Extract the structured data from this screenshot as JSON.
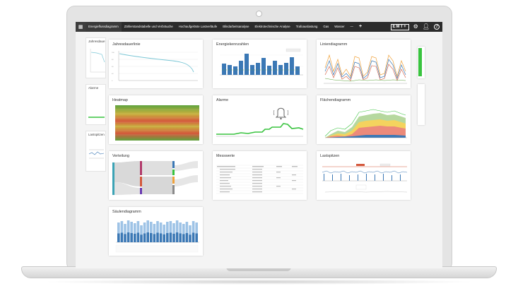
{
  "nav": {
    "tabs": [
      "Energieflussdiagramm",
      "Zählerstandstabelle und Verbräuche",
      "Hochaufgelöste Lastverläufe",
      "Blindarbeitsanalyse",
      "Elektrotechnische Analyse",
      "Trafoauslastung",
      "Gas",
      "Wasser"
    ],
    "more": "—",
    "add": "+",
    "logo": "EMT+",
    "settings_icon": "gear-icon",
    "user_icon": "user-icon",
    "help_icon": "help-icon"
  },
  "sidebar": {
    "items": [
      "Jahresdaue",
      "Alarme",
      "Lastspitzen"
    ]
  },
  "cards": {
    "jahresdauerlinie": "Jahresdauerlinie",
    "energiekennzahlen": "Energiekennzahlen",
    "liniendiagramm": "Liniendiagramm",
    "heatmap": "Heatmap",
    "alarme": "Alarme",
    "flaechendiagramm": "Flächendiagramm",
    "verteilung": "Verteilung",
    "messwerte": "Messwerte",
    "lastspitzen": "Lastspitzen",
    "saeulendiagramm": "Säulendiagramm"
  },
  "colors": {
    "navbar": "#2b2b2b",
    "accent_blue": "#3b78b5",
    "alarm_green": "#39c33f",
    "heat_green": "#5fa33e",
    "heat_red": "#d4583c"
  }
}
